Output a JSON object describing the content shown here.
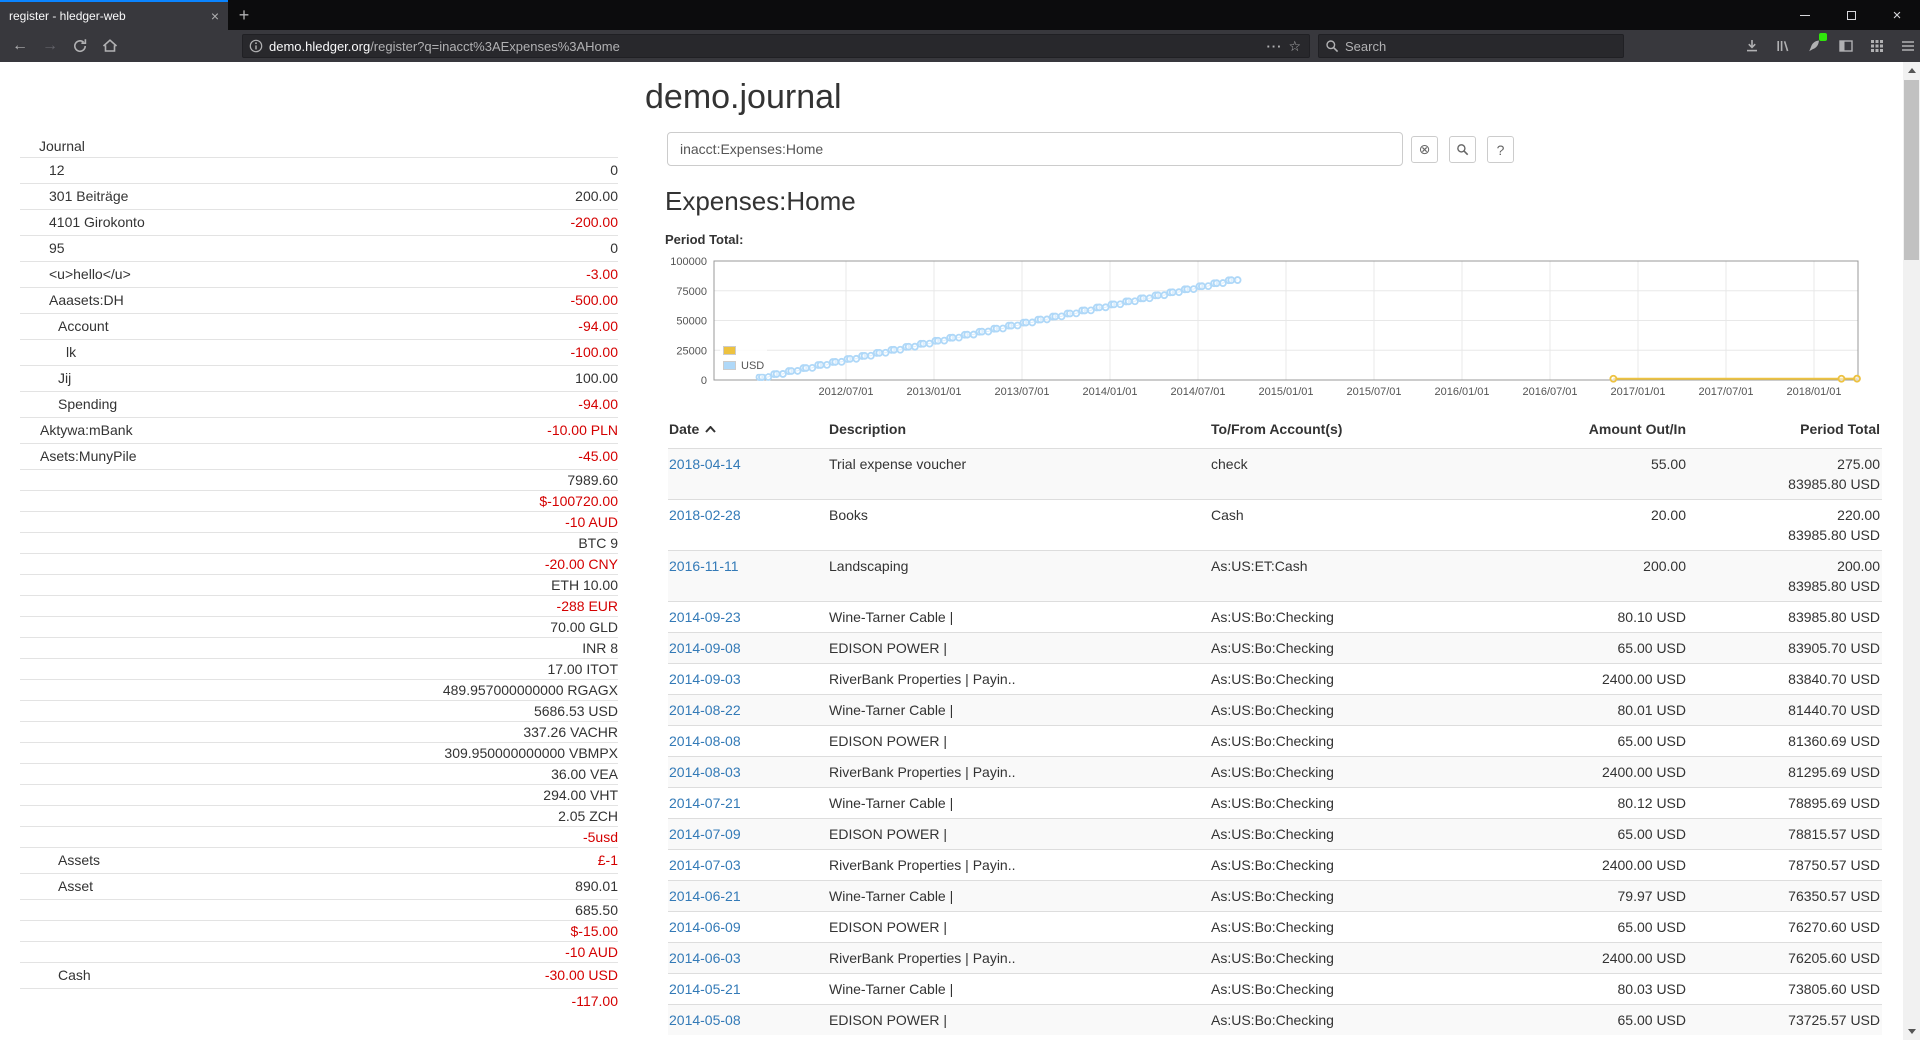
{
  "browser": {
    "tab_title": "register - hledger-web",
    "new_tab_label": "+",
    "tab_close_glyph": "×",
    "url_domain": "demo.hledger.org",
    "url_path": "/register?q=inacct%3AExpenses%3AHome",
    "page_actions_glyph": "···",
    "bookmark_star_glyph": "☆",
    "search_placeholder": "Search",
    "back_glyph": "←",
    "forward_glyph": "→",
    "close_glyph": "×"
  },
  "page": {
    "title": "demo.journal",
    "sidebar": {
      "heading": "Journal",
      "rows": [
        {
          "name": "12",
          "indent": 1,
          "value": "0",
          "neg": false
        },
        {
          "name": "301 Beiträge",
          "indent": 1,
          "value": "200.00",
          "neg": false
        },
        {
          "name": "4101 Girokonto",
          "indent": 1,
          "value": "-200.00",
          "neg": true
        },
        {
          "name": "95",
          "indent": 1,
          "value": "0",
          "neg": false
        },
        {
          "name": "<u>hello</u>",
          "indent": 1,
          "value": "-3.00",
          "neg": true
        },
        {
          "name": "Aaasets:DH",
          "indent": 1,
          "value": "-500.00",
          "neg": true
        },
        {
          "name": "Account",
          "indent": 2,
          "value": "-94.00",
          "neg": true
        },
        {
          "name": "lk",
          "indent": 3,
          "value": "-100.00",
          "neg": true
        },
        {
          "name": "Jij",
          "indent": 2,
          "value": "100.00",
          "neg": false
        },
        {
          "name": "Spending",
          "indent": 2,
          "value": "-94.00",
          "neg": true
        },
        {
          "name": "Aktywa:mBank",
          "indent": 0,
          "value": "-10.00 PLN",
          "neg": true
        },
        {
          "name": "Asets:MunyPile",
          "indent": 0,
          "value": "-45.00",
          "neg": true
        },
        {
          "name": "",
          "value": "7989.60",
          "neg": false,
          "tight": true
        },
        {
          "name": "",
          "value": "$-100720.00",
          "neg": true,
          "tight": true
        },
        {
          "name": "",
          "value": "-10 AUD",
          "neg": true,
          "tight": true
        },
        {
          "name": "",
          "value": "BTC 9",
          "neg": false,
          "tight": true
        },
        {
          "name": "",
          "value": "-20.00 CNY",
          "neg": true,
          "tight": true
        },
        {
          "name": "",
          "value": "ETH 10.00",
          "neg": false,
          "tight": true
        },
        {
          "name": "",
          "value": "-288 EUR",
          "neg": true,
          "tight": true
        },
        {
          "name": "",
          "value": "70.00 GLD",
          "neg": false,
          "tight": true
        },
        {
          "name": "",
          "value": "INR 8",
          "neg": false,
          "tight": true
        },
        {
          "name": "",
          "value": "17.00 ITOT",
          "neg": false,
          "tight": true
        },
        {
          "name": "",
          "value": "489.957000000000 RGAGX",
          "neg": false,
          "tight": true
        },
        {
          "name": "",
          "value": "5686.53 USD",
          "neg": false,
          "tight": true
        },
        {
          "name": "",
          "value": "337.26 VACHR",
          "neg": false,
          "tight": true
        },
        {
          "name": "",
          "value": "309.950000000000 VBMPX",
          "neg": false,
          "tight": true
        },
        {
          "name": "",
          "value": "36.00 VEA",
          "neg": false,
          "tight": true
        },
        {
          "name": "",
          "value": "294.00 VHT",
          "neg": false,
          "tight": true
        },
        {
          "name": "",
          "value": "2.05 ZCH",
          "neg": false,
          "tight": true
        },
        {
          "name": "",
          "value": "-5usd",
          "neg": true,
          "tight": true
        },
        {
          "name": "Assets",
          "indent": 2,
          "value": "£-1",
          "neg": true
        },
        {
          "name": "Asset",
          "indent": 2,
          "value": "890.01",
          "neg": false
        },
        {
          "name": "",
          "value": "685.50",
          "neg": false,
          "tight": true
        },
        {
          "name": "",
          "value": "$-15.00",
          "neg": true,
          "tight": true
        },
        {
          "name": "",
          "value": "-10 AUD",
          "neg": true,
          "tight": true
        },
        {
          "name": "Cash",
          "indent": 2,
          "value": "-30.00 USD",
          "neg": true
        },
        {
          "name": "",
          "value": "-117.00",
          "neg": true
        }
      ]
    },
    "query": {
      "value": "inacct:Expenses:Home",
      "clear_glyph": "⊗",
      "help_glyph": "?"
    },
    "register": {
      "heading": "Expenses:Home",
      "chart_label": "Period Total:",
      "table": {
        "headers": [
          "Date",
          "Description",
          "To/From Account(s)",
          "Amount Out/In",
          "Period Total"
        ],
        "rows": [
          {
            "date": "2018-04-14",
            "desc": "Trial expense voucher",
            "acct": "check",
            "amount": "55.00",
            "period": [
              "275.00",
              "83985.80 USD"
            ]
          },
          {
            "date": "2018-02-28",
            "desc": "Books",
            "acct": "Cash",
            "amount": "20.00",
            "period": [
              "220.00",
              "83985.80 USD"
            ]
          },
          {
            "date": "2016-11-11",
            "desc": "Landscaping",
            "acct": "As:US:ET:Cash",
            "amount": "200.00",
            "period": [
              "200.00",
              "83985.80 USD"
            ]
          },
          {
            "date": "2014-09-23",
            "desc": "Wine-Tarner Cable |",
            "acct": "As:US:Bo:Checking",
            "amount": "80.10 USD",
            "period": [
              "83985.80 USD"
            ]
          },
          {
            "date": "2014-09-08",
            "desc": "EDISON POWER |",
            "acct": "As:US:Bo:Checking",
            "amount": "65.00 USD",
            "period": [
              "83905.70 USD"
            ]
          },
          {
            "date": "2014-09-03",
            "desc": "RiverBank Properties | Payin..",
            "acct": "As:US:Bo:Checking",
            "amount": "2400.00 USD",
            "period": [
              "83840.70 USD"
            ]
          },
          {
            "date": "2014-08-22",
            "desc": "Wine-Tarner Cable |",
            "acct": "As:US:Bo:Checking",
            "amount": "80.01 USD",
            "period": [
              "81440.70 USD"
            ]
          },
          {
            "date": "2014-08-08",
            "desc": "EDISON POWER |",
            "acct": "As:US:Bo:Checking",
            "amount": "65.00 USD",
            "period": [
              "81360.69 USD"
            ]
          },
          {
            "date": "2014-08-03",
            "desc": "RiverBank Properties | Payin..",
            "acct": "As:US:Bo:Checking",
            "amount": "2400.00 USD",
            "period": [
              "81295.69 USD"
            ]
          },
          {
            "date": "2014-07-21",
            "desc": "Wine-Tarner Cable |",
            "acct": "As:US:Bo:Checking",
            "amount": "80.12 USD",
            "period": [
              "78895.69 USD"
            ]
          },
          {
            "date": "2014-07-09",
            "desc": "EDISON POWER |",
            "acct": "As:US:Bo:Checking",
            "amount": "65.00 USD",
            "period": [
              "78815.57 USD"
            ]
          },
          {
            "date": "2014-07-03",
            "desc": "RiverBank Properties | Payin..",
            "acct": "As:US:Bo:Checking",
            "amount": "2400.00 USD",
            "period": [
              "78750.57 USD"
            ]
          },
          {
            "date": "2014-06-21",
            "desc": "Wine-Tarner Cable |",
            "acct": "As:US:Bo:Checking",
            "amount": "79.97 USD",
            "period": [
              "76350.57 USD"
            ]
          },
          {
            "date": "2014-06-09",
            "desc": "EDISON POWER |",
            "acct": "As:US:Bo:Checking",
            "amount": "65.00 USD",
            "period": [
              "76270.60 USD"
            ]
          },
          {
            "date": "2014-06-03",
            "desc": "RiverBank Properties | Payin..",
            "acct": "As:US:Bo:Checking",
            "amount": "2400.00 USD",
            "period": [
              "76205.60 USD"
            ]
          },
          {
            "date": "2014-05-21",
            "desc": "Wine-Tarner Cable |",
            "acct": "As:US:Bo:Checking",
            "amount": "80.03 USD",
            "period": [
              "73805.60 USD"
            ]
          },
          {
            "date": "2014-05-08",
            "desc": "EDISON POWER |",
            "acct": "As:US:Bo:Checking",
            "amount": "65.00 USD",
            "period": [
              "73725.57 USD"
            ]
          }
        ]
      }
    }
  },
  "chart_data": {
    "type": "line",
    "title": "Period Total:",
    "x_tick_labels": [
      "2012/07/01",
      "2013/01/01",
      "2013/07/01",
      "2014/01/01",
      "2014/07/01",
      "2015/01/01",
      "2015/07/01",
      "2016/01/01",
      "2016/07/01",
      "2017/01/01",
      "2017/07/01",
      "2018/01/01"
    ],
    "y_ticks": [
      0,
      25000,
      50000,
      75000,
      100000
    ],
    "ylim": [
      0,
      100000
    ],
    "x_domain_months": [
      "2011-10",
      "2018-04"
    ],
    "grid": true,
    "legend_position": "bottom-left",
    "series": [
      {
        "name": "",
        "color": "#edc240",
        "points": [
          [
            "2016-11-11",
            200
          ],
          [
            "2018-02-28",
            220
          ],
          [
            "2018-04-14",
            275
          ]
        ]
      },
      {
        "name": "USD",
        "color": "#afd8f8",
        "start_month": "2012-01",
        "monthly_deltas": [
          2400,
          65,
          80
        ],
        "monthly_cumulative": [
          2545,
          5090,
          7635,
          10180,
          12725,
          15270,
          17815,
          20360,
          22905,
          25450,
          27995,
          30540,
          33085,
          35630,
          38175,
          40720,
          43265,
          45810,
          48355,
          50900,
          53445,
          55990,
          58535,
          61080,
          63625,
          66170,
          68715,
          71261,
          73806,
          76351,
          78896,
          81441,
          83986
        ]
      }
    ]
  }
}
